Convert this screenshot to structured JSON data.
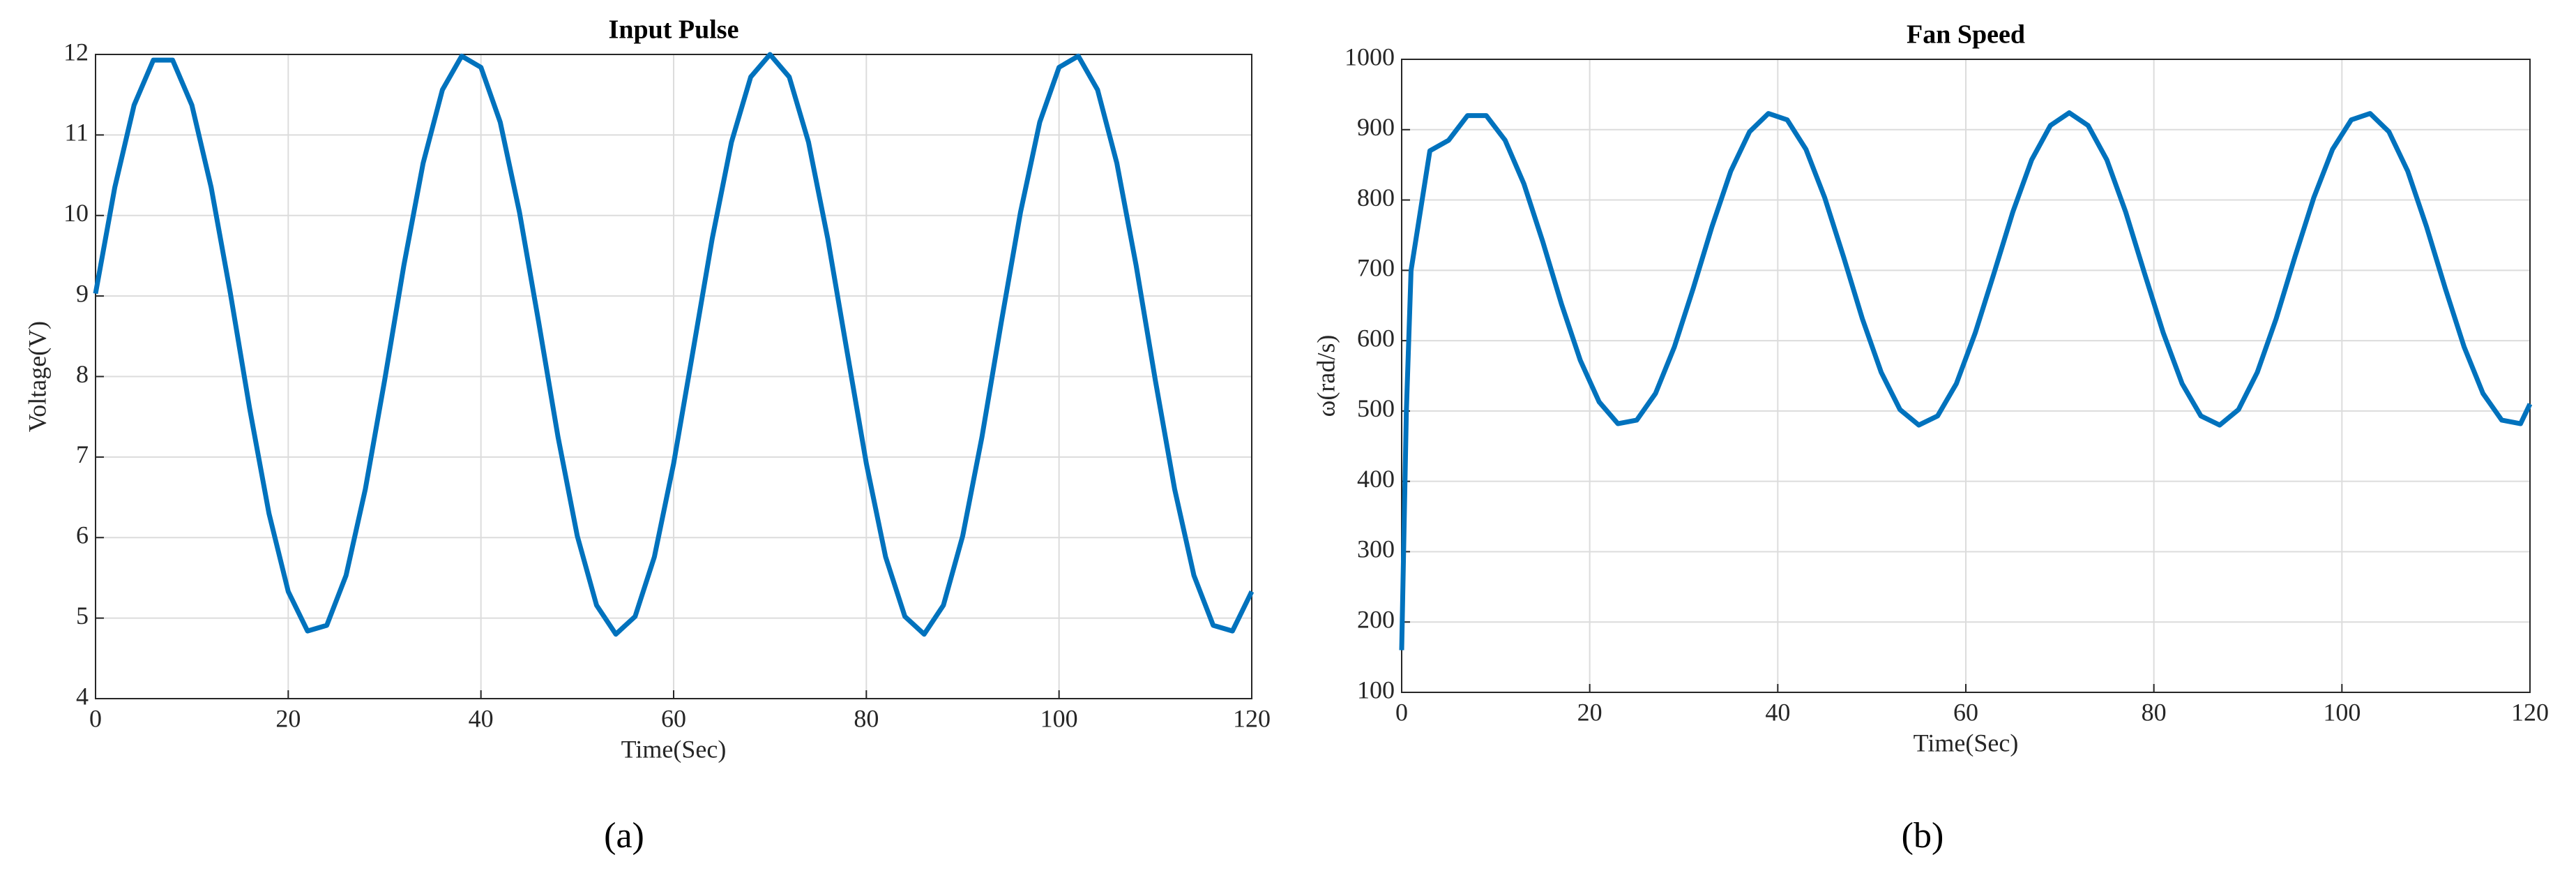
{
  "chart_data": [
    {
      "type": "line",
      "title": "Input Pulse",
      "xlabel": "Time(Sec)",
      "ylabel": "Voltage(V)",
      "caption": "(a)",
      "x": [
        0,
        2,
        4,
        6,
        8,
        10,
        12,
        14,
        16,
        18,
        20,
        22,
        24,
        26,
        28,
        30,
        32,
        34,
        36,
        38,
        40,
        42,
        44,
        46,
        48,
        50,
        52,
        54,
        56,
        58,
        60,
        62,
        64,
        66,
        68,
        70,
        72,
        74,
        76,
        78,
        80,
        82,
        84,
        86,
        88,
        90,
        92,
        94,
        96,
        98,
        100,
        102,
        104,
        106,
        108,
        110,
        112,
        114,
        116,
        118,
        120
      ],
      "values": [
        9.03,
        10.35,
        11.37,
        11.93,
        11.93,
        11.37,
        10.35,
        9.03,
        7.6,
        6.3,
        5.33,
        4.84,
        4.91,
        5.53,
        6.6,
        7.95,
        9.38,
        10.65,
        11.56,
        11.98,
        11.84,
        11.16,
        10.04,
        8.67,
        7.25,
        6.02,
        5.16,
        4.8,
        5.02,
        5.76,
        6.92,
        8.31,
        9.71,
        10.91,
        11.72,
        12.0,
        11.72,
        10.91,
        9.71,
        8.31,
        6.92,
        5.76,
        5.02,
        4.8,
        5.16,
        6.02,
        7.25,
        8.67,
        10.04,
        11.16,
        11.84,
        11.98,
        11.56,
        10.65,
        9.38,
        7.95,
        6.6,
        5.53,
        4.91,
        4.84,
        5.33
      ],
      "color": "#0072bd",
      "xlim": [
        0,
        120
      ],
      "xticks": [
        0,
        20,
        40,
        60,
        80,
        100,
        120
      ],
      "ylim": [
        4,
        12
      ],
      "yticks": [
        4,
        5,
        6,
        7,
        8,
        9,
        10,
        11,
        12
      ],
      "grid": true
    },
    {
      "type": "line",
      "title": "Fan Speed",
      "xlabel": "Time(Sec)",
      "ylabel": "ω(rad/s)",
      "caption": "(b)",
      "x": [
        0,
        0.5,
        1,
        3,
        5,
        7,
        9,
        11,
        13,
        15,
        17,
        19,
        21,
        23,
        25,
        27,
        29,
        31,
        33,
        35,
        37,
        39,
        41,
        43,
        45,
        47,
        49,
        51,
        53,
        55,
        57,
        59,
        61,
        63,
        65,
        67,
        69,
        71,
        73,
        75,
        77,
        79,
        81,
        83,
        85,
        87,
        89,
        91,
        93,
        95,
        97,
        99,
        101,
        103,
        105,
        107,
        109,
        111,
        113,
        115,
        117,
        119,
        120
      ],
      "values": [
        160,
        500,
        700,
        870,
        885,
        920,
        920,
        885,
        823,
        741,
        652,
        572,
        513,
        482,
        487,
        525,
        591,
        674,
        762,
        841,
        897,
        923,
        914,
        872,
        803,
        719,
        631,
        555,
        502,
        480,
        493,
        539,
        611,
        696,
        783,
        857,
        906,
        924,
        906,
        857,
        783,
        696,
        611,
        539,
        493,
        480,
        502,
        555,
        631,
        719,
        803,
        872,
        914,
        923,
        897,
        841,
        762,
        674,
        591,
        525,
        487,
        482,
        510
      ],
      "color": "#0072bd",
      "xlim": [
        0,
        120
      ],
      "xticks": [
        0,
        20,
        40,
        60,
        80,
        100,
        120
      ],
      "ylim": [
        100,
        1000
      ],
      "yticks": [
        100,
        200,
        300,
        400,
        500,
        600,
        700,
        800,
        900,
        1000
      ],
      "grid": true
    }
  ]
}
